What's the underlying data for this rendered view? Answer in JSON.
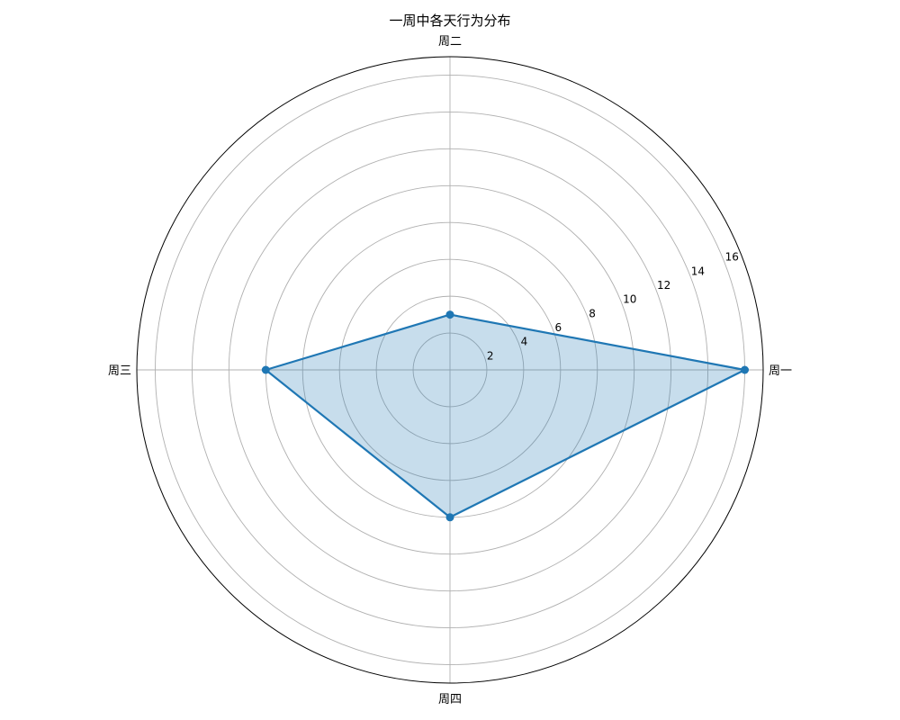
{
  "chart_data": {
    "type": "radar",
    "title": "一周中各天行为分布",
    "categories": [
      "周一",
      "周二",
      "周三",
      "周四"
    ],
    "series": [
      {
        "values": [
          16,
          3,
          10,
          8
        ]
      }
    ],
    "rlim": [
      0,
      17
    ],
    "radial_ticks": [
      2,
      4,
      6,
      8,
      10,
      12,
      14,
      16
    ],
    "radial_tick_labels": [
      "2",
      "4",
      "6",
      "8",
      "10",
      "12",
      "14",
      "16"
    ],
    "grid": true,
    "colors": {
      "line": "#1f77b4",
      "fill": "#1f77b4",
      "grid": "#b0b0b0",
      "frame": "#000000"
    }
  }
}
